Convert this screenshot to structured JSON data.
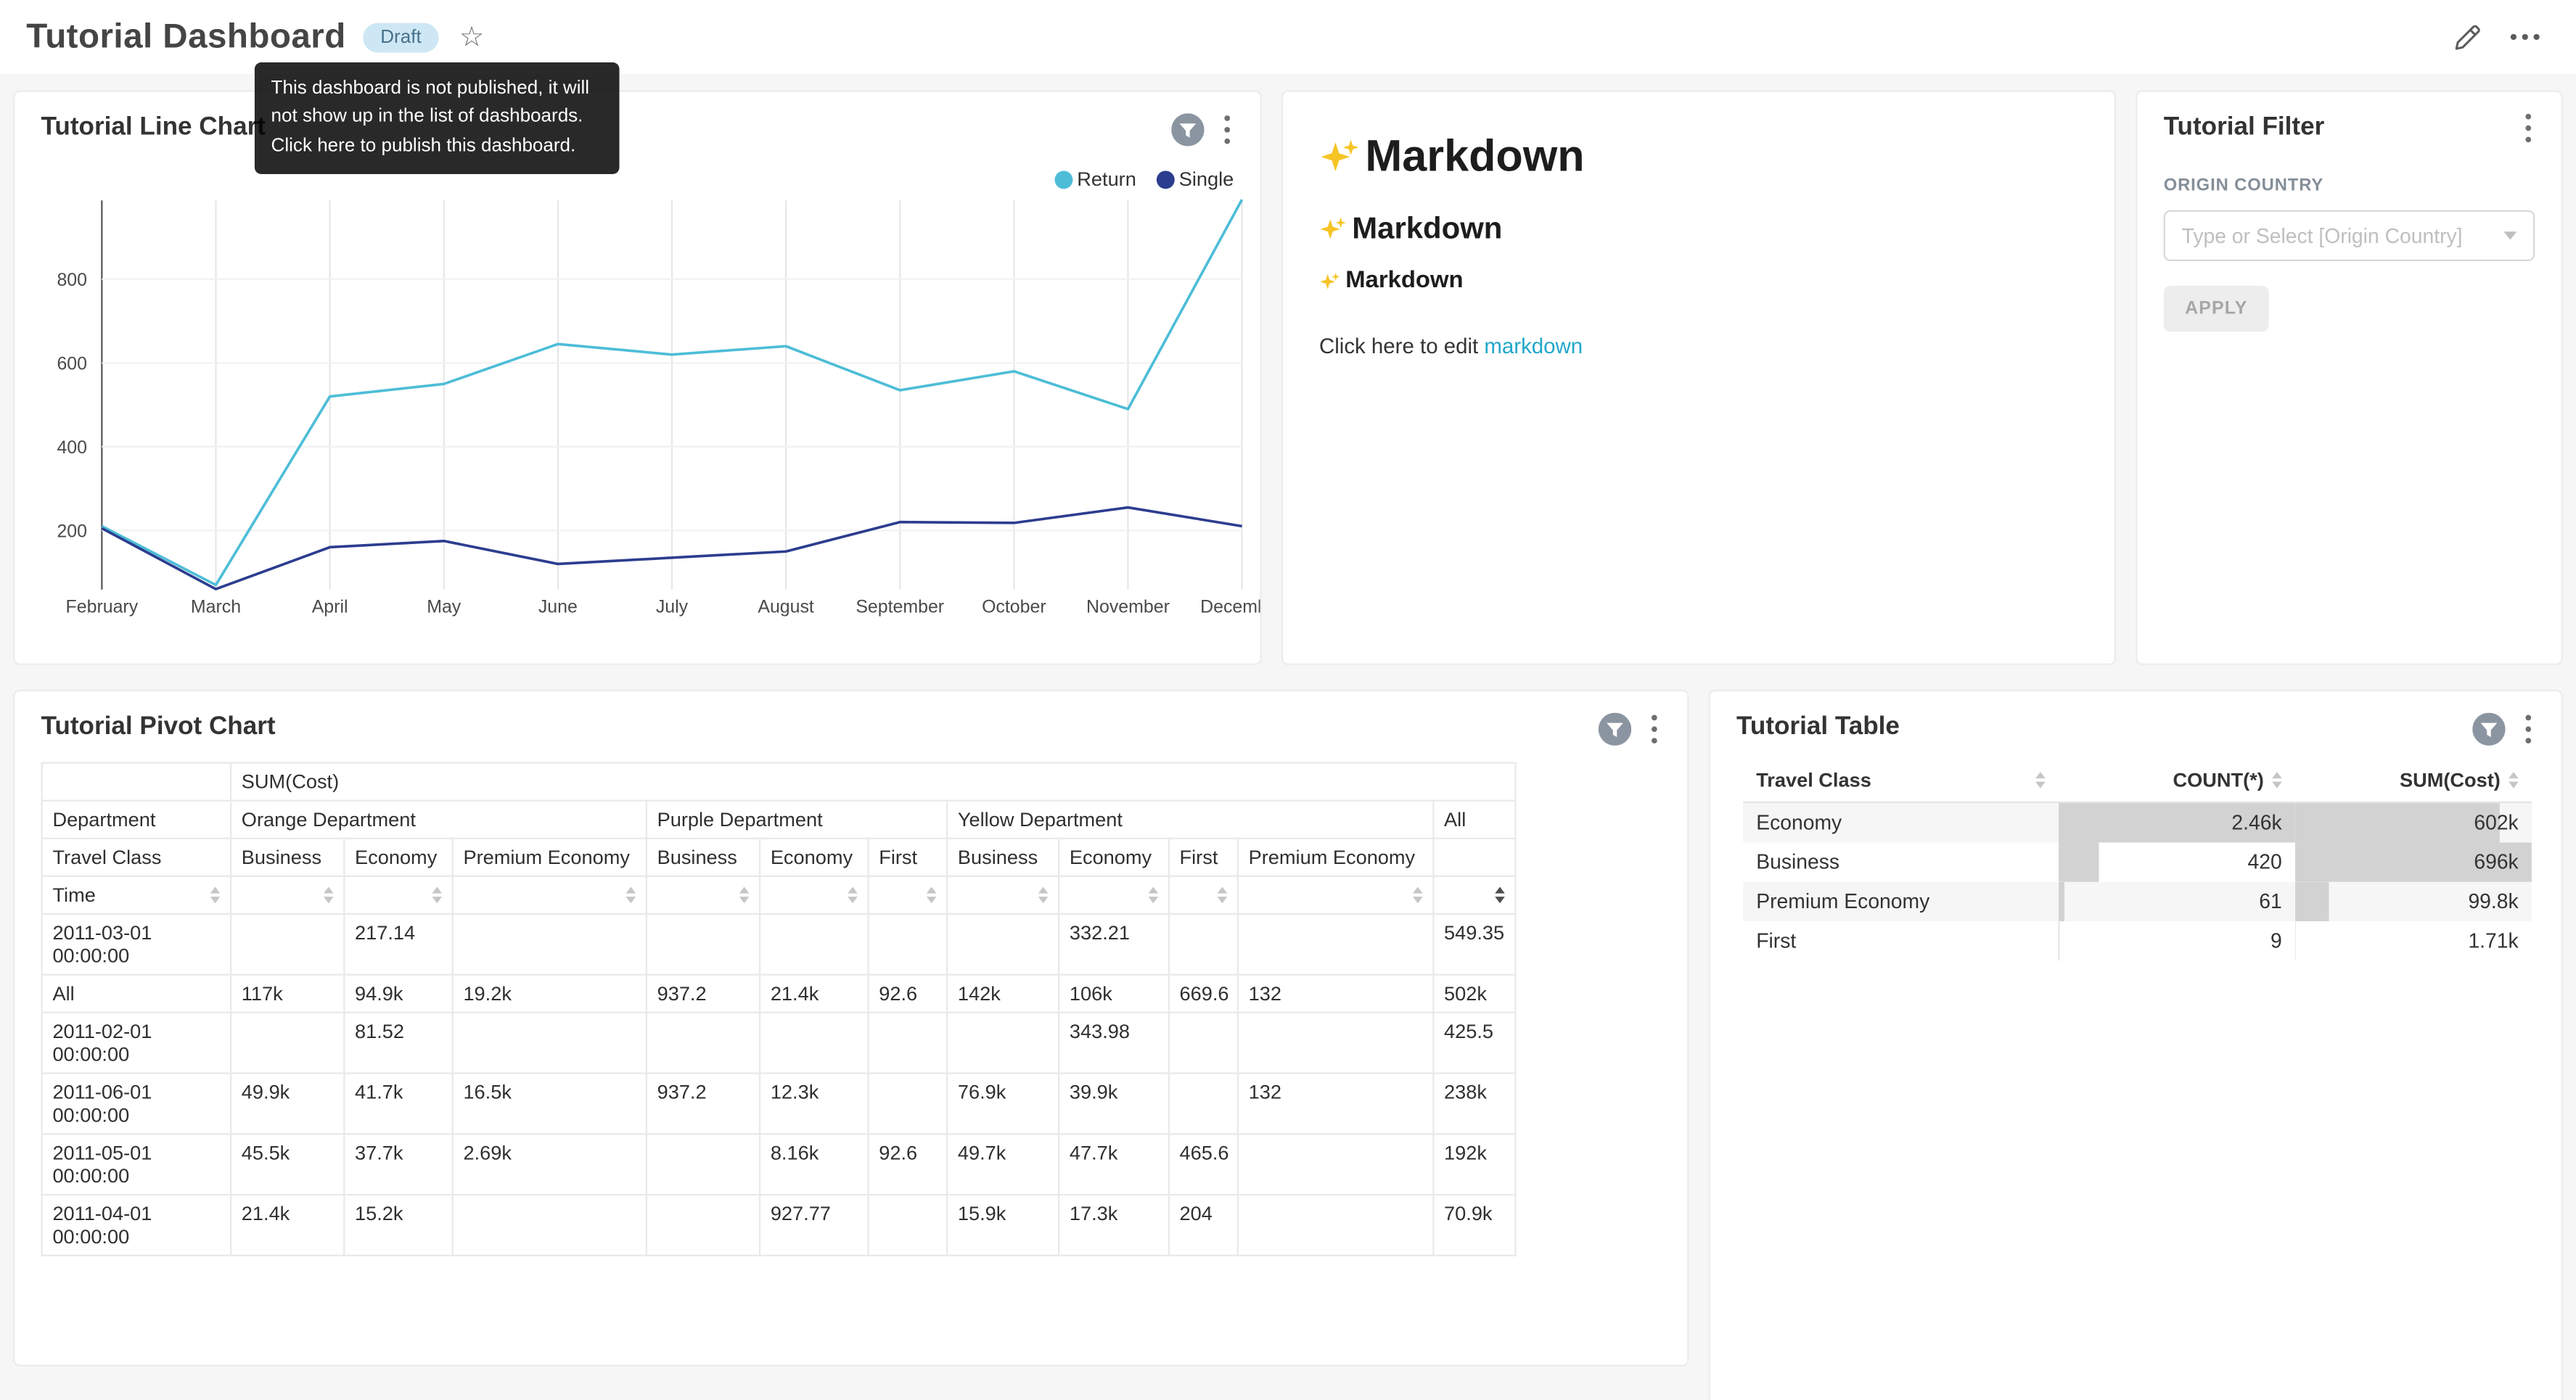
{
  "header": {
    "title": "Tutorial Dashboard",
    "badge": "Draft",
    "tooltip": "This dashboard is not published, it will not show up in the list of dashboards. Click here to publish this dashboard."
  },
  "colors": {
    "accent": "#20a7c9",
    "draft_badge_bg": "#cde7f4",
    "draft_badge_text": "#47718a"
  },
  "line_chart_card": {
    "title": "Tutorial Line Chart"
  },
  "chart_data": {
    "type": "line",
    "title": "Tutorial Line Chart",
    "x": [
      "February",
      "March",
      "April",
      "May",
      "June",
      "July",
      "August",
      "September",
      "October",
      "November",
      "December"
    ],
    "yticks": [
      200,
      400,
      600,
      800
    ],
    "ylim": [
      0,
      1000
    ],
    "grid": true,
    "legend_position": "top-right",
    "series": [
      {
        "name": "Return",
        "color": "#4dbdd7",
        "values": [
          210,
          70,
          520,
          550,
          645,
          620,
          640,
          535,
          580,
          490,
          990
        ]
      },
      {
        "name": "Single",
        "color": "#2c3d8f",
        "values": [
          205,
          60,
          160,
          175,
          120,
          135,
          150,
          220,
          218,
          255,
          210
        ]
      }
    ]
  },
  "markdown_card": {
    "h1": "Markdown",
    "h2": "Markdown",
    "h3": "Markdown",
    "paragraph_prefix": "Click here to edit ",
    "link_text": "markdown"
  },
  "filter_card": {
    "title": "Tutorial Filter",
    "field_label": "ORIGIN COUNTRY",
    "select_placeholder": "Type or Select [Origin Country]",
    "apply_label": "APPLY"
  },
  "pivot_card": {
    "title": "Tutorial Pivot Chart",
    "metric_header": "SUM(Cost)",
    "dimension_header": "Department",
    "subdimension_header": "Travel Class",
    "row_header": "Time",
    "active_sort_column": 10,
    "column_groups": [
      {
        "label": "Orange Department",
        "cols": [
          "Business",
          "Economy",
          "Premium Economy"
        ]
      },
      {
        "label": "Purple Department",
        "cols": [
          "Business",
          "Economy",
          "First"
        ]
      },
      {
        "label": "Yellow Department",
        "cols": [
          "Business",
          "Economy",
          "First",
          "Premium Economy"
        ]
      },
      {
        "label": "All",
        "cols": [
          ""
        ]
      }
    ],
    "rows": [
      {
        "label": "2011-03-01 00:00:00",
        "values": [
          "",
          "217.14",
          "",
          "",
          "",
          "",
          "",
          "332.21",
          "",
          "",
          "549.35"
        ]
      },
      {
        "label": "All",
        "values": [
          "117k",
          "94.9k",
          "19.2k",
          "937.2",
          "21.4k",
          "92.6",
          "142k",
          "106k",
          "669.6",
          "132",
          "502k"
        ]
      },
      {
        "label": "2011-02-01 00:00:00",
        "values": [
          "",
          "81.52",
          "",
          "",
          "",
          "",
          "",
          "343.98",
          "",
          "",
          "425.5"
        ]
      },
      {
        "label": "2011-06-01 00:00:00",
        "values": [
          "49.9k",
          "41.7k",
          "16.5k",
          "937.2",
          "12.3k",
          "",
          "76.9k",
          "39.9k",
          "",
          "132",
          "238k"
        ]
      },
      {
        "label": "2011-05-01 00:00:00",
        "values": [
          "45.5k",
          "37.7k",
          "2.69k",
          "",
          "8.16k",
          "92.6",
          "49.7k",
          "47.7k",
          "465.6",
          "",
          "192k"
        ]
      },
      {
        "label": "2011-04-01 00:00:00",
        "values": [
          "21.4k",
          "15.2k",
          "",
          "",
          "927.77",
          "",
          "15.9k",
          "17.3k",
          "204",
          "",
          "70.9k"
        ]
      }
    ]
  },
  "table_card": {
    "title": "Tutorial Table",
    "columns": [
      "Travel Class",
      "COUNT(*)",
      "SUM(Cost)"
    ],
    "bar_color": "#d2d2d2",
    "rows": [
      {
        "travel_class": "Economy",
        "count_label": "2.46k",
        "count": 2460,
        "sum_label": "602k",
        "sum": 602000
      },
      {
        "travel_class": "Business",
        "count_label": "420",
        "count": 420,
        "sum_label": "696k",
        "sum": 696000
      },
      {
        "travel_class": "Premium Economy",
        "count_label": "61",
        "count": 61,
        "sum_label": "99.8k",
        "sum": 99800
      },
      {
        "travel_class": "First",
        "count_label": "9",
        "count": 9,
        "sum_label": "1.71k",
        "sum": 1710
      }
    ]
  }
}
